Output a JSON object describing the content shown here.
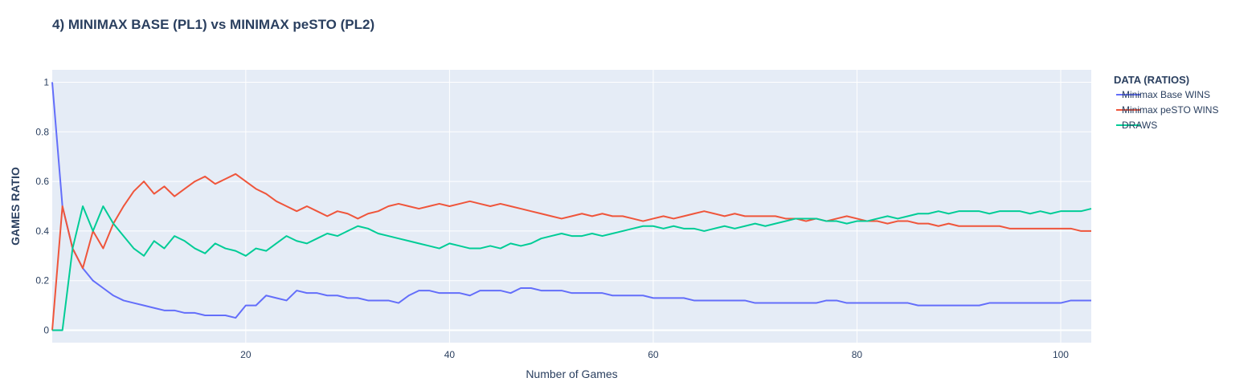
{
  "chart_data": {
    "type": "line",
    "title": "4) MINIMAX BASE (PL1) vs MINIMAX peSTO (PL2)",
    "xlabel": "Number of Games",
    "ylabel": "GAMES RATIO",
    "xlim": [
      1,
      103
    ],
    "ylim": [
      -0.05,
      1.05
    ],
    "xticks": [
      20,
      40,
      60,
      80,
      100
    ],
    "yticks": [
      0,
      0.2,
      0.4,
      0.6,
      0.8,
      1
    ],
    "ytick_labels": [
      "0",
      "0.2",
      "0.4",
      "0.6",
      "0.8",
      "1"
    ],
    "grid": true,
    "legend": {
      "title": "DATA (RATIOS)",
      "placement": "right"
    },
    "background": "#e5ecf6",
    "x": [
      1,
      2,
      3,
      4,
      5,
      6,
      7,
      8,
      9,
      10,
      11,
      12,
      13,
      14,
      15,
      16,
      17,
      18,
      19,
      20,
      21,
      22,
      23,
      24,
      25,
      26,
      27,
      28,
      29,
      30,
      31,
      32,
      33,
      34,
      35,
      36,
      37,
      38,
      39,
      40,
      41,
      42,
      43,
      44,
      45,
      46,
      47,
      48,
      49,
      50,
      51,
      52,
      53,
      54,
      55,
      56,
      57,
      58,
      59,
      60,
      61,
      62,
      63,
      64,
      65,
      66,
      67,
      68,
      69,
      70,
      71,
      72,
      73,
      74,
      75,
      76,
      77,
      78,
      79,
      80,
      81,
      82,
      83,
      84,
      85,
      86,
      87,
      88,
      89,
      90,
      91,
      92,
      93,
      94,
      95,
      96,
      97,
      98,
      99,
      100,
      101,
      102,
      103
    ],
    "series": [
      {
        "name": "Minimax Base WINS",
        "color": "#636efa",
        "values": [
          1,
          0.5,
          0.33,
          0.25,
          0.2,
          0.17,
          0.14,
          0.12,
          0.11,
          0.1,
          0.09,
          0.08,
          0.08,
          0.07,
          0.07,
          0.06,
          0.06,
          0.06,
          0.05,
          0.1,
          0.1,
          0.14,
          0.13,
          0.12,
          0.16,
          0.15,
          0.15,
          0.14,
          0.14,
          0.13,
          0.13,
          0.12,
          0.12,
          0.12,
          0.11,
          0.14,
          0.16,
          0.16,
          0.15,
          0.15,
          0.15,
          0.14,
          0.16,
          0.16,
          0.16,
          0.15,
          0.17,
          0.17,
          0.16,
          0.16,
          0.16,
          0.15,
          0.15,
          0.15,
          0.15,
          0.14,
          0.14,
          0.14,
          0.14,
          0.13,
          0.13,
          0.13,
          0.13,
          0.12,
          0.12,
          0.12,
          0.12,
          0.12,
          0.12,
          0.11,
          0.11,
          0.11,
          0.11,
          0.11,
          0.11,
          0.11,
          0.12,
          0.12,
          0.11,
          0.11,
          0.11,
          0.11,
          0.11,
          0.11,
          0.11,
          0.1,
          0.1,
          0.1,
          0.1,
          0.1,
          0.1,
          0.1,
          0.11,
          0.11,
          0.11,
          0.11,
          0.11,
          0.11,
          0.11,
          0.11,
          0.12,
          0.12,
          0.12
        ]
      },
      {
        "name": "Minimax peSTO WINS",
        "color": "#ef553b",
        "values": [
          0,
          0.5,
          0.33,
          0.25,
          0.4,
          0.33,
          0.43,
          0.5,
          0.56,
          0.6,
          0.55,
          0.58,
          0.54,
          0.57,
          0.6,
          0.62,
          0.59,
          0.61,
          0.63,
          0.6,
          0.57,
          0.55,
          0.52,
          0.5,
          0.48,
          0.5,
          0.48,
          0.46,
          0.48,
          0.47,
          0.45,
          0.47,
          0.48,
          0.5,
          0.51,
          0.5,
          0.49,
          0.5,
          0.51,
          0.5,
          0.51,
          0.52,
          0.51,
          0.5,
          0.51,
          0.5,
          0.49,
          0.48,
          0.47,
          0.46,
          0.45,
          0.46,
          0.47,
          0.46,
          0.47,
          0.46,
          0.46,
          0.45,
          0.44,
          0.45,
          0.46,
          0.45,
          0.46,
          0.47,
          0.48,
          0.47,
          0.46,
          0.47,
          0.46,
          0.46,
          0.46,
          0.46,
          0.45,
          0.45,
          0.44,
          0.45,
          0.44,
          0.45,
          0.46,
          0.45,
          0.44,
          0.44,
          0.43,
          0.44,
          0.44,
          0.43,
          0.43,
          0.42,
          0.43,
          0.42,
          0.42,
          0.42,
          0.42,
          0.42,
          0.41,
          0.41,
          0.41,
          0.41,
          0.41,
          0.41,
          0.41,
          0.4,
          0.4
        ]
      },
      {
        "name": "DRAWS",
        "color": "#00cc96",
        "values": [
          0,
          0,
          0.33,
          0.5,
          0.4,
          0.5,
          0.43,
          0.38,
          0.33,
          0.3,
          0.36,
          0.33,
          0.38,
          0.36,
          0.33,
          0.31,
          0.35,
          0.33,
          0.32,
          0.3,
          0.33,
          0.32,
          0.35,
          0.38,
          0.36,
          0.35,
          0.37,
          0.39,
          0.38,
          0.4,
          0.42,
          0.41,
          0.39,
          0.38,
          0.37,
          0.36,
          0.35,
          0.34,
          0.33,
          0.35,
          0.34,
          0.33,
          0.33,
          0.34,
          0.33,
          0.35,
          0.34,
          0.35,
          0.37,
          0.38,
          0.39,
          0.38,
          0.38,
          0.39,
          0.38,
          0.39,
          0.4,
          0.41,
          0.42,
          0.42,
          0.41,
          0.42,
          0.41,
          0.41,
          0.4,
          0.41,
          0.42,
          0.41,
          0.42,
          0.43,
          0.42,
          0.43,
          0.44,
          0.45,
          0.45,
          0.45,
          0.44,
          0.44,
          0.43,
          0.44,
          0.44,
          0.45,
          0.46,
          0.45,
          0.46,
          0.47,
          0.47,
          0.48,
          0.47,
          0.48,
          0.48,
          0.48,
          0.47,
          0.48,
          0.48,
          0.48,
          0.47,
          0.48,
          0.47,
          0.48,
          0.48,
          0.48,
          0.49
        ]
      }
    ]
  }
}
